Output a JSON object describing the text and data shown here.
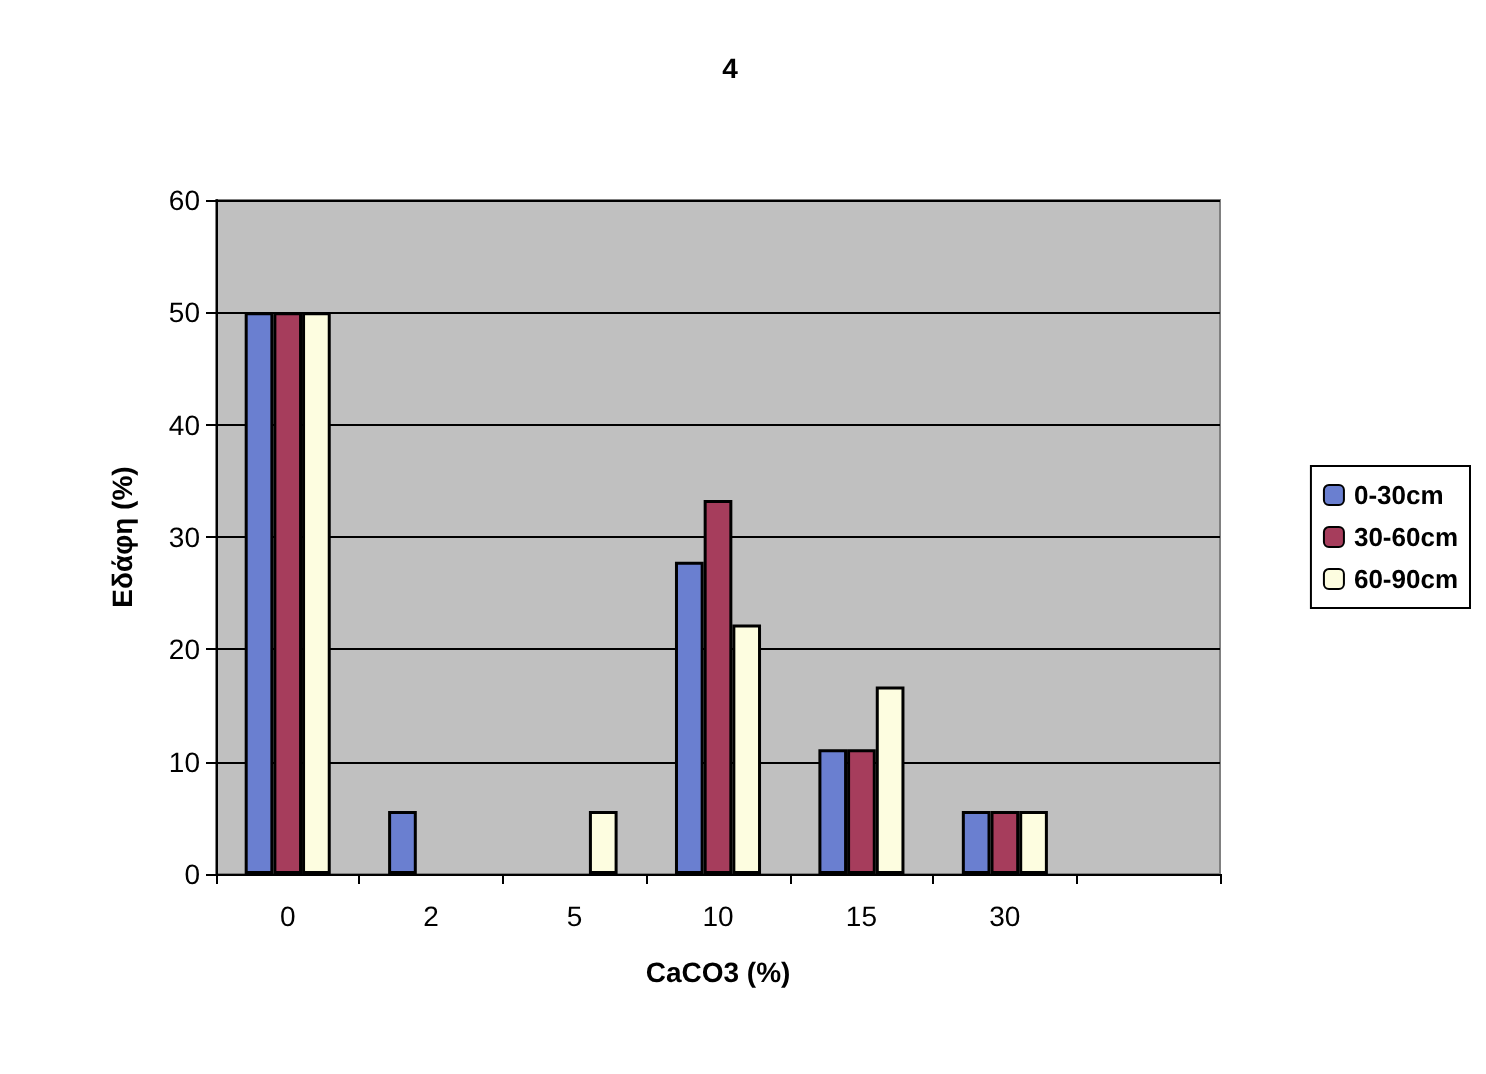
{
  "chart_data": {
    "type": "bar",
    "title": "4",
    "xlabel": "CaCO3 (%)",
    "ylabel": "Εδάφη (%)",
    "categories": [
      "0",
      "2",
      "5",
      "10",
      "15",
      "30",
      null
    ],
    "series": [
      {
        "name": "0-30cm",
        "color": "#6a7fd0",
        "values": [
          50,
          5.6,
          0,
          27.8,
          11.1,
          5.6,
          null
        ]
      },
      {
        "name": "30-60cm",
        "color": "#a63d5c",
        "values": [
          50,
          0,
          0,
          33.3,
          11.1,
          5.6,
          null
        ]
      },
      {
        "name": "60-90cm",
        "color": "#fdfde0",
        "values": [
          50,
          0,
          5.6,
          22.2,
          16.7,
          5.6,
          null
        ]
      }
    ],
    "ylim": [
      0,
      60
    ],
    "yticks": [
      0,
      10,
      20,
      30,
      40,
      50,
      60
    ],
    "grid": "y",
    "legend": "right"
  }
}
